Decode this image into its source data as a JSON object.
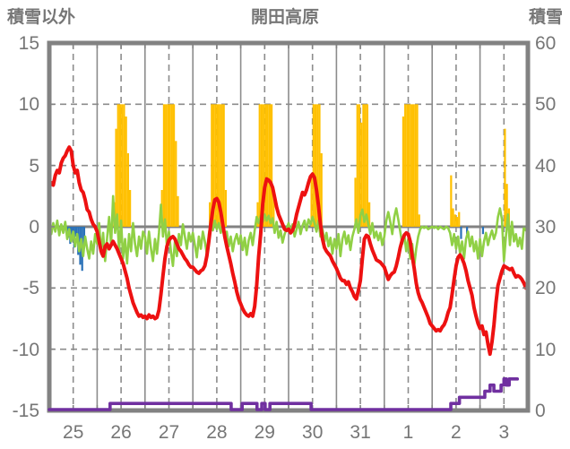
{
  "header": {
    "left_axis_title": "積雪以外",
    "title": "開田高原",
    "right_axis_title": "積雪"
  },
  "chart_data": {
    "type": "line",
    "title": "開田高原",
    "left_axis": {
      "label": "積雪以外",
      "range": [
        -15,
        15
      ],
      "ticks": [
        "15",
        "10",
        "5",
        "0",
        "-5",
        "-10",
        "-15"
      ]
    },
    "right_axis": {
      "label": "積雪",
      "range": [
        0,
        60
      ],
      "ticks": [
        "60",
        "50",
        "40",
        "30",
        "20",
        "10",
        "0"
      ]
    },
    "x_axis": {
      "tick_labels": [
        "25",
        "26",
        "27",
        "28",
        "29",
        "30",
        "31",
        "1",
        "2",
        "3"
      ],
      "days": 10,
      "grid_solid_at_day_bounds": true,
      "grid_dashed_at_noon": true
    },
    "grid": {
      "h_dashed_values": [
        10,
        5,
        -5,
        -10
      ],
      "zero_line": 0
    },
    "colors": {
      "temperature": "#ed1111",
      "green_series": "#90d045",
      "sunshine": "#ffc000",
      "precipitation": "#2b72b8",
      "snow_depth": "#7030a0",
      "grid": "#8c8c8c",
      "frame": "#828282",
      "text": "#767676"
    },
    "series": {
      "temperature_red_hourly_by_day": [
        [
          3.2,
          3.6,
          3.4,
          4.2,
          4.6,
          4.4,
          5.2,
          5.6,
          5.8,
          6.2,
          6.5,
          6.2,
          5.0,
          4.4,
          4.6,
          3.6,
          3.0,
          2.8,
          2.2,
          1.4,
          1.2,
          0.6,
          0.2,
          0.0
        ],
        [
          -0.4,
          -1.2,
          -2.0,
          -2.4,
          -1.6,
          -1.4,
          -1.8,
          -1.5,
          -1.2,
          -1.5,
          -1.8,
          -2.2,
          -2.6,
          -3.0,
          -3.6,
          -4.2,
          -5.0,
          -5.6,
          -6.2,
          -6.6,
          -7.0,
          -7.3,
          -7.2,
          -7.4
        ],
        [
          -7.3,
          -7.5,
          -7.2,
          -7.4,
          -7.3,
          -7.5,
          -7.4,
          -6.8,
          -5.5,
          -4.0,
          -2.6,
          -1.6,
          -1.1,
          -0.9,
          -0.8,
          -1.0,
          -1.4,
          -1.8,
          -2.0,
          -2.3,
          -2.6,
          -2.8,
          -3.1,
          -3.3
        ],
        [
          -3.3,
          -3.5,
          -3.7,
          -3.8,
          -3.6,
          -3.5,
          -3.2,
          -2.4,
          -1.2,
          0.2,
          1.4,
          2.2,
          2.3,
          2.0,
          1.2,
          0.2,
          -0.8,
          -1.6,
          -2.3,
          -3.0,
          -3.8,
          -4.5,
          -5.3,
          -5.9
        ],
        [
          -6.3,
          -6.7,
          -7.0,
          -7.2,
          -7.3,
          -7.1,
          -7.3,
          -6.5,
          -4.8,
          -2.4,
          -0.6,
          1.8,
          3.2,
          3.9,
          3.8,
          3.6,
          3.2,
          2.4,
          1.6,
          1.0,
          0.6,
          0.2,
          -0.2,
          -0.3
        ],
        [
          -0.2,
          -0.5,
          -0.3,
          0.2,
          1.0,
          1.6,
          2.2,
          2.8,
          2.6,
          3.0,
          3.6,
          4.1,
          4.3,
          4.0,
          3.0,
          1.7,
          0.2,
          -1.0,
          -1.7,
          -2.0,
          -2.2,
          -2.4,
          -2.8,
          -3.1
        ],
        [
          -3.4,
          -3.8,
          -4.2,
          -4.4,
          -4.4,
          -4.7,
          -4.5,
          -5.0,
          -5.3,
          -5.7,
          -5.9,
          -5.2,
          -4.4,
          -2.6,
          -1.0,
          -0.7,
          -0.8,
          -1.4,
          -1.9,
          -2.3,
          -2.7,
          -2.8,
          -2.9,
          -3.1
        ],
        [
          -3.3,
          -3.8,
          -4.3,
          -4.0,
          -3.8,
          -3.7,
          -3.2,
          -2.5,
          -1.7,
          -1.1,
          -0.7,
          -0.5,
          -0.6,
          -1.2,
          -2.4,
          -3.4,
          -4.6,
          -5.4,
          -5.9,
          -6.2,
          -6.6,
          -7.0,
          -7.4,
          -7.9
        ],
        [
          -8.1,
          -8.3,
          -8.5,
          -8.4,
          -8.5,
          -8.2,
          -8.0,
          -7.6,
          -7.0,
          -6.6,
          -5.5,
          -4.3,
          -3.2,
          -2.5,
          -2.3,
          -2.6,
          -3.0,
          -3.6,
          -4.4,
          -5.0,
          -5.6,
          -6.6,
          -7.3,
          -7.9
        ],
        [
          -8.3,
          -8.1,
          -8.8,
          -8.6,
          -9.6,
          -10.4,
          -9.4,
          -8.0,
          -6.2,
          -4.8,
          -4.2,
          -3.6,
          -3.2,
          -3.3,
          -3.4,
          -3.5,
          -3.4,
          -3.8,
          -4.1,
          -4.0,
          -4.1,
          -4.3,
          -4.6,
          -5.0
        ]
      ],
      "green_hourly_by_day": [
        [
          0.2,
          -0.6,
          0.3,
          -0.4,
          0.5,
          -0.7,
          0.2,
          -0.5,
          0.4,
          -1.0,
          -0.2,
          -1.2,
          -0.4,
          -1.6,
          -0.6,
          -2.0,
          -1.0,
          -2.4,
          -0.8,
          -1.8,
          -2.6,
          -1.2,
          -2.2,
          -0.6
        ],
        [
          -1.4,
          0.3,
          -2.2,
          -0.5,
          -2.8,
          -0.9,
          0.8,
          -1.5,
          2.5,
          -0.5,
          1.0,
          -2.0,
          0.5,
          -2.6,
          -1.0,
          -3.0,
          -0.6,
          -2.0,
          0.3,
          -1.4,
          -2.4,
          -0.8,
          -1.8,
          -0.4
        ],
        [
          -0.8,
          -2.2,
          -0.4,
          -1.8,
          -2.8,
          -1.0,
          -2.2,
          -0.5,
          1.8,
          -0.8,
          0.6,
          -1.6,
          -0.4,
          -2.0,
          -3.2,
          -1.2,
          -2.4,
          -0.6,
          -1.5,
          0.2,
          -0.8,
          -1.8,
          -0.5,
          -1.2
        ],
        [
          -0.5,
          -1.5,
          -2.5,
          -0.8,
          -1.8,
          -0.4,
          -1.2,
          -2.2,
          -0.6,
          0.4,
          -0.3,
          0.5,
          -0.2,
          0.3,
          -0.5,
          0.2,
          -1.0,
          -0.4,
          -1.6,
          -0.8,
          -2.0,
          -1.1,
          -0.6,
          -1.4
        ],
        [
          -0.7,
          -1.9,
          -0.9,
          -2.3,
          -1.1,
          -0.5,
          -1.5,
          -0.3,
          0.8,
          0.3,
          0.9,
          0.4,
          1.0,
          0.5,
          0.9,
          0.3,
          0.7,
          -0.5,
          0.4,
          -0.9,
          -0.3,
          -1.3,
          -0.6,
          -0.2
        ],
        [
          0.3,
          -0.5,
          0.2,
          -0.8,
          -0.2,
          0.4,
          -0.6,
          0.1,
          0.5,
          -0.3,
          0.6,
          0.2,
          0.8,
          0.3,
          -0.4,
          0.5,
          -0.8,
          -0.2,
          -1.2,
          -0.5,
          -1.6,
          -0.9,
          -2.2,
          -1.0
        ],
        [
          -1.8,
          -0.6,
          -2.4,
          -1.0,
          -0.4,
          -1.4,
          -0.7,
          -1.9,
          -0.8,
          -0.2,
          0.6,
          -0.5,
          0.9,
          1.4,
          0.4,
          1.0,
          0.2,
          -0.6,
          0.3,
          -0.9,
          -0.4,
          -1.1,
          -0.5,
          -1.5
        ],
        [
          -0.8,
          0.5,
          1.2,
          0.4,
          -0.6,
          0.8,
          1.5,
          0.6,
          -0.4,
          -1.4,
          -0.6,
          -2.0,
          -1.0,
          -2.6,
          -1.4,
          -3.2,
          -1.8,
          -0.8,
          -0.2,
          0.0,
          -0.1,
          0.0,
          -0.2,
          -0.1
        ],
        [
          0.0,
          -0.1,
          0.0,
          -0.2,
          0.0,
          -0.1,
          -0.2,
          0.0,
          -0.1,
          -0.5,
          -1.5,
          -0.6,
          -1.8,
          -0.8,
          -2.2,
          -1.2,
          -2.6,
          -1.0,
          -0.4,
          -1.6,
          -0.8,
          -2.0,
          -1.2,
          -2.6
        ],
        [
          -1.0,
          -2.4,
          -1.2,
          -0.5,
          -1.5,
          -0.8,
          -0.3,
          -1.0,
          -0.5,
          0.8,
          1.5,
          0.6,
          -2.8,
          -0.8,
          1.0,
          -1.5,
          0.4,
          -1.2,
          -0.6,
          -1.6,
          -0.9,
          -1.8,
          0.0,
          -0.3
        ]
      ],
      "sunshine_bars_day_hour_value": [
        [
          1,
          8,
          2
        ],
        [
          1,
          9,
          8
        ],
        [
          1,
          10,
          10
        ],
        [
          1,
          11,
          10
        ],
        [
          1,
          12,
          10
        ],
        [
          1,
          13,
          10
        ],
        [
          1,
          14,
          9
        ],
        [
          1,
          15,
          6
        ],
        [
          1,
          16,
          3
        ],
        [
          2,
          8,
          3
        ],
        [
          2,
          9,
          10
        ],
        [
          2,
          10,
          10
        ],
        [
          2,
          11,
          10
        ],
        [
          2,
          12,
          10
        ],
        [
          2,
          13,
          10
        ],
        [
          2,
          14,
          10
        ],
        [
          2,
          15,
          7
        ],
        [
          2,
          16,
          2.5
        ],
        [
          3,
          8,
          2
        ],
        [
          3,
          9,
          10
        ],
        [
          3,
          10,
          10
        ],
        [
          3,
          11,
          10
        ],
        [
          3,
          12,
          10
        ],
        [
          3,
          13,
          10
        ],
        [
          3,
          14,
          10
        ],
        [
          3,
          15,
          10
        ],
        [
          3,
          16,
          3
        ],
        [
          4,
          8,
          2
        ],
        [
          4,
          9,
          10
        ],
        [
          4,
          10,
          10
        ],
        [
          4,
          11,
          10
        ],
        [
          4,
          12,
          10
        ],
        [
          4,
          13,
          10
        ],
        [
          4,
          14,
          10
        ],
        [
          4,
          15,
          10
        ],
        [
          4,
          16,
          3
        ],
        [
          5,
          11,
          4
        ],
        [
          5,
          12,
          10
        ],
        [
          5,
          13,
          10
        ],
        [
          5,
          14,
          10
        ],
        [
          5,
          15,
          10
        ],
        [
          5,
          16,
          6
        ],
        [
          6,
          9,
          4
        ],
        [
          6,
          10,
          10
        ],
        [
          6,
          11,
          10
        ],
        [
          6,
          12,
          8.5
        ],
        [
          6,
          13,
          10
        ],
        [
          6,
          14,
          10
        ],
        [
          6,
          15,
          10
        ],
        [
          6,
          16,
          2
        ],
        [
          7,
          9,
          9
        ],
        [
          7,
          10,
          10
        ],
        [
          7,
          11,
          10
        ],
        [
          7,
          12,
          10
        ],
        [
          7,
          13,
          10
        ],
        [
          7,
          14,
          10
        ],
        [
          7,
          15,
          10
        ],
        [
          7,
          16,
          10
        ],
        [
          7,
          17,
          1
        ],
        [
          8,
          9,
          4.2
        ],
        [
          8,
          10,
          1.5
        ],
        [
          8,
          11,
          1
        ],
        [
          8,
          12,
          0.8
        ],
        [
          8,
          13,
          1.2
        ],
        [
          9,
          12,
          8
        ],
        [
          9,
          13,
          3.5
        ],
        [
          9,
          14,
          1.5
        ]
      ],
      "precip_bars_day_hour_value": [
        [
          0,
          8,
          -0.5
        ],
        [
          0,
          9,
          -0.9
        ],
        [
          0,
          10,
          -1.4
        ],
        [
          0,
          11,
          -1.0
        ],
        [
          0,
          12,
          -1.7
        ],
        [
          0,
          13,
          -0.8
        ],
        [
          0,
          14,
          -2.3
        ],
        [
          0,
          15,
          -3.1
        ],
        [
          0,
          16,
          -3.6
        ],
        [
          0,
          17,
          -1.5
        ],
        [
          8,
          14,
          -1.0
        ],
        [
          8,
          17,
          -0.6
        ],
        [
          9,
          1,
          -0.6
        ]
      ],
      "snow_depth_steps_x_cm": [
        [
          0,
          0
        ],
        [
          1.27,
          0
        ],
        [
          1.27,
          1
        ],
        [
          3.8,
          1
        ],
        [
          3.8,
          0
        ],
        [
          4.03,
          0
        ],
        [
          4.03,
          1
        ],
        [
          4.34,
          1
        ],
        [
          4.34,
          0
        ],
        [
          4.44,
          0
        ],
        [
          4.44,
          1
        ],
        [
          4.51,
          1
        ],
        [
          4.51,
          0
        ],
        [
          4.61,
          0
        ],
        [
          4.61,
          1
        ],
        [
          5.47,
          1
        ],
        [
          5.47,
          0
        ],
        [
          8.39,
          0
        ],
        [
          8.39,
          1
        ],
        [
          8.57,
          1
        ],
        [
          8.57,
          2
        ],
        [
          9.1,
          2
        ],
        [
          9.1,
          3
        ],
        [
          9.21,
          3
        ],
        [
          9.21,
          4
        ],
        [
          9.29,
          4
        ],
        [
          9.29,
          3
        ],
        [
          9.44,
          3
        ],
        [
          9.44,
          4
        ],
        [
          9.5,
          4
        ],
        [
          9.5,
          5
        ],
        [
          9.55,
          5
        ],
        [
          9.55,
          4
        ],
        [
          9.61,
          4
        ],
        [
          9.61,
          5
        ],
        [
          9.78,
          5
        ]
      ]
    }
  }
}
